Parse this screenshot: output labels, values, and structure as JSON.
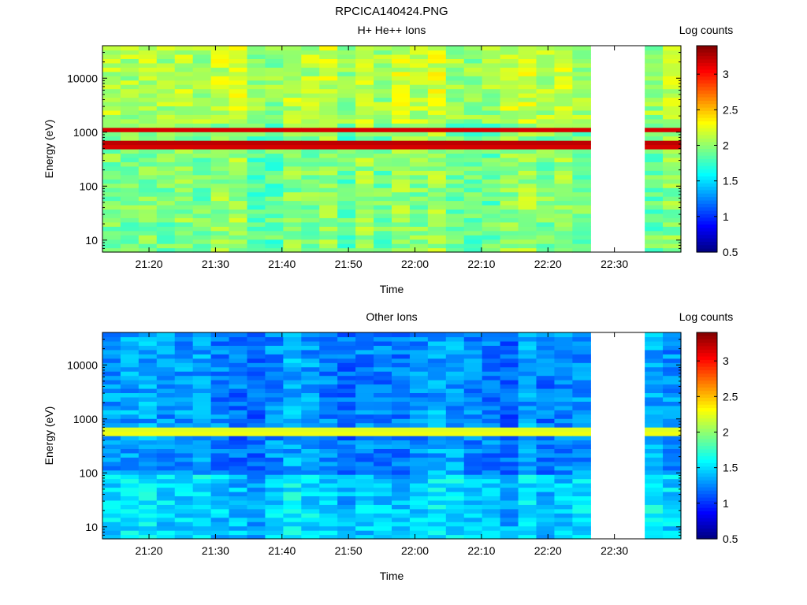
{
  "figure_title": "RPCICA140424.PNG",
  "chart_data": [
    {
      "type": "heatmap",
      "title": "H+ He++ Ions",
      "xlabel": "Time",
      "ylabel": "Energy (eV)",
      "x_ticks": [
        "21:20",
        "21:30",
        "21:40",
        "21:50",
        "22:00",
        "22:10",
        "22:20",
        "22:30"
      ],
      "y_ticks": [
        "10",
        "100",
        "1000",
        "10000"
      ],
      "y_scale": "log",
      "ylim": [
        6,
        40000
      ],
      "xlim": [
        "21:13",
        "22:40"
      ],
      "data_gap": [
        "22:27",
        "22:33"
      ],
      "colorbar": {
        "label": "Log counts",
        "ticks": [
          "0.5",
          "1",
          "1.5",
          "2",
          "2.5",
          "3"
        ],
        "range": [
          0.5,
          3.4
        ]
      },
      "background_log_counts": 1.95,
      "bands": [
        {
          "energy_ev": 1150,
          "log_counts": 3.2
        },
        {
          "energy_ev": 600,
          "log_counts": 3.35
        }
      ]
    },
    {
      "type": "heatmap",
      "title": "Other Ions",
      "xlabel": "Time",
      "ylabel": "Energy (eV)",
      "x_ticks": [
        "21:20",
        "21:30",
        "21:40",
        "21:50",
        "22:00",
        "22:10",
        "22:20",
        "22:30"
      ],
      "y_ticks": [
        "10",
        "100",
        "1000",
        "10000"
      ],
      "y_scale": "log",
      "ylim": [
        6,
        40000
      ],
      "xlim": [
        "21:13",
        "22:40"
      ],
      "data_gap": [
        "22:27",
        "22:33"
      ],
      "colorbar": {
        "label": "Log counts",
        "ticks": [
          "0.5",
          "1",
          "1.5",
          "2",
          "2.5",
          "3"
        ],
        "range": [
          0.5,
          3.4
        ]
      },
      "background_log_counts": 1.25,
      "bands": [
        {
          "energy_ev": 580,
          "log_counts": 2.4
        }
      ]
    }
  ]
}
